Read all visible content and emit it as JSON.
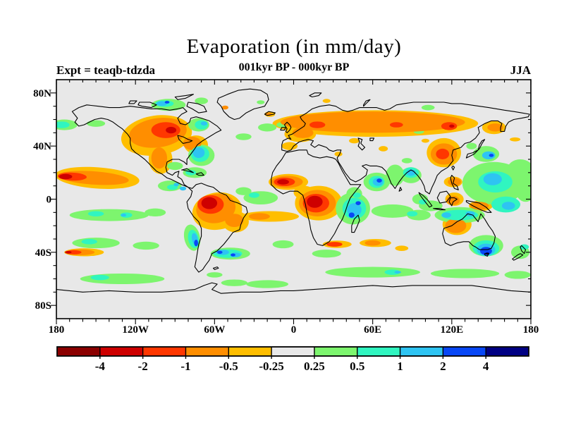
{
  "header": {
    "title": "Evaporation (in mm/day)",
    "subtitle": "001kyr BP - 000kyr BP",
    "experiment_label": "Expt = teaqb-tdzda",
    "season_label": "JJA"
  },
  "axes": {
    "x": {
      "min": -180,
      "max": 180,
      "minor_step": 10,
      "major_ticks": [
        {
          "v": -180,
          "label": "180"
        },
        {
          "v": -120,
          "label": "120W"
        },
        {
          "v": -60,
          "label": "60W"
        },
        {
          "v": 0,
          "label": "0"
        },
        {
          "v": 60,
          "label": "60E"
        },
        {
          "v": 120,
          "label": "120E"
        },
        {
          "v": 180,
          "label": "180"
        }
      ]
    },
    "y": {
      "min": -90,
      "max": 90,
      "minor_step": 10,
      "major_ticks": [
        {
          "v": 80,
          "label": "80N"
        },
        {
          "v": 40,
          "label": "40N"
        },
        {
          "v": 0,
          "label": "0"
        },
        {
          "v": -40,
          "label": "40S"
        },
        {
          "v": -80,
          "label": "80S"
        }
      ]
    }
  },
  "colorbar": {
    "tick_labels": [
      "-4",
      "-2",
      "-1",
      "-0.5",
      "-0.25",
      "0.25",
      "0.5",
      "1",
      "2",
      "4"
    ],
    "colors": [
      "#8B0000",
      "#CE0000",
      "#FF3700",
      "#FF8E00",
      "#FFBE00",
      "#E8E8E8",
      "#7DF56E",
      "#30F5C0",
      "#2EC4F2",
      "#0847F5",
      "#000083"
    ],
    "outline_color": "#000000"
  },
  "map_style": {
    "background": "#E8E8E8",
    "coastline_color": "#000000"
  },
  "chart_data": {
    "type": "filled_contour_map",
    "variable": "Evaporation",
    "units": "mm/day",
    "title": "Evaporation (in mm/day)",
    "period": "001kyr BP - 000kyr BP",
    "season": "JJA",
    "experiment": "teaqb-tdzda",
    "projection": "equirectangular",
    "lon_range": [
      -180,
      180
    ],
    "lat_range": [
      -90,
      90
    ],
    "contour_levels": [
      -4,
      -2,
      -1,
      -0.5,
      -0.25,
      0.25,
      0.5,
      1,
      2,
      4
    ],
    "background_value_band": "-0.25 to 0.25 (gray)",
    "anomaly_format": [
      "lon_deg",
      "lat_deg",
      "rx_deg",
      "ry_deg",
      "level(-5..-1 drier, +1..+5 wetter)",
      "rot_deg"
    ],
    "anomalies": [
      [
        -104,
        48,
        27,
        15,
        -1,
        -8
      ],
      [
        -103,
        50,
        22,
        11,
        -2,
        -8
      ],
      [
        -97,
        52,
        11,
        6,
        -3,
        0
      ],
      [
        -93,
        52,
        4,
        2.5,
        -4,
        0
      ],
      [
        -101,
        30,
        9,
        11,
        -1,
        0
      ],
      [
        -102,
        31,
        6,
        8,
        -2,
        0
      ],
      [
        -74,
        41,
        9,
        7,
        -1,
        0
      ],
      [
        -77,
        42,
        7,
        5,
        -2,
        0
      ],
      [
        -149,
        16,
        32,
        8,
        -1,
        4
      ],
      [
        -152,
        16,
        27,
        5,
        -2,
        4
      ],
      [
        -168,
        17,
        11,
        3,
        -3,
        2
      ],
      [
        -173,
        17,
        5,
        2,
        -4,
        0
      ],
      [
        62,
        57,
        78,
        10,
        -1,
        0
      ],
      [
        60,
        58,
        70,
        8,
        -2,
        0
      ],
      [
        18,
        56,
        6,
        2.5,
        -3,
        0
      ],
      [
        78,
        56,
        5,
        2,
        -3,
        0
      ],
      [
        118,
        55,
        6,
        3,
        -3,
        0
      ],
      [
        120,
        55,
        2,
        1.2,
        -4,
        0
      ],
      [
        5,
        49,
        12,
        6,
        -1,
        0
      ],
      [
        7,
        50,
        8,
        4,
        -2,
        0
      ],
      [
        -3,
        40,
        6,
        3,
        -1,
        0
      ],
      [
        114,
        35,
        13,
        11,
        -1,
        0
      ],
      [
        114,
        34,
        10,
        8,
        -2,
        0
      ],
      [
        113,
        34,
        5,
        4,
        -3,
        0
      ],
      [
        152,
        54,
        9,
        5,
        -1,
        0
      ],
      [
        153,
        54,
        6,
        3,
        -2,
        0
      ],
      [
        168,
        45,
        4,
        1.5,
        -1,
        0
      ],
      [
        -4,
        13,
        15,
        6,
        -1,
        0
      ],
      [
        -5,
        13,
        12,
        4.5,
        -2,
        0
      ],
      [
        -7,
        13,
        8,
        3.2,
        -3,
        0
      ],
      [
        -8,
        13,
        4.5,
        2,
        -4,
        0
      ],
      [
        19,
        -3,
        18,
        13,
        -1,
        0
      ],
      [
        18,
        -3,
        14,
        10,
        -2,
        0
      ],
      [
        17,
        -3,
        10,
        7,
        -3,
        0
      ],
      [
        16,
        -2,
        6,
        4.5,
        -4,
        0
      ],
      [
        8,
        5,
        8,
        5,
        -1,
        0
      ],
      [
        -58,
        -9,
        19,
        14,
        -1,
        -10
      ],
      [
        -59,
        -7,
        15,
        11,
        -2,
        -10
      ],
      [
        -63,
        -4,
        10,
        7,
        -3,
        0
      ],
      [
        -64,
        -3,
        6,
        4.5,
        -4,
        0
      ],
      [
        -44,
        -17,
        10,
        8,
        -1,
        0
      ],
      [
        -45,
        -16,
        7,
        5,
        -2,
        0
      ],
      [
        -18,
        -13,
        22,
        4,
        -1,
        0
      ],
      [
        -26,
        -13,
        8,
        2.5,
        -2,
        0
      ],
      [
        -18,
        64,
        4,
        2,
        -1,
        0
      ],
      [
        -19,
        64,
        2.5,
        1.2,
        -2,
        0
      ],
      [
        -52,
        69,
        2.5,
        1.5,
        -2,
        0
      ],
      [
        25,
        74,
        3,
        1.5,
        -1,
        0
      ],
      [
        34,
        34,
        3,
        1.8,
        -1,
        0
      ],
      [
        46,
        44,
        4,
        2,
        -1,
        0
      ],
      [
        68,
        38,
        3.5,
        2,
        -1,
        0
      ],
      [
        100,
        44,
        3,
        1.5,
        -1,
        0
      ],
      [
        -159,
        -40,
        15,
        3,
        -1,
        0
      ],
      [
        -162,
        -40,
        11,
        2.2,
        -2,
        0
      ],
      [
        -167,
        -40,
        6,
        1.6,
        -3,
        0
      ],
      [
        -171,
        -40,
        2.5,
        1,
        -4,
        0
      ],
      [
        33,
        -34,
        11,
        2.8,
        -1,
        0
      ],
      [
        31,
        -34,
        6,
        1.8,
        -3,
        0
      ],
      [
        62,
        -33,
        12,
        3,
        -1,
        0
      ],
      [
        60,
        -33,
        6,
        2,
        -2,
        0
      ],
      [
        82,
        -37,
        5,
        2,
        -1,
        0
      ],
      [
        124,
        -19,
        11,
        8,
        -1,
        0
      ],
      [
        123,
        -20,
        8,
        5.5,
        -2,
        0
      ],
      [
        122,
        0,
        7,
        5,
        -1,
        0
      ],
      [
        121,
        -1,
        5,
        3.5,
        -2,
        0
      ],
      [
        142,
        -5,
        9,
        4,
        -1,
        0
      ],
      [
        141,
        -5,
        7,
        3,
        -2,
        0
      ],
      [
        121,
        13,
        7,
        4,
        -1,
        0
      ],
      [
        122,
        13,
        5,
        3,
        -2,
        0
      ],
      [
        -95,
        71,
        13,
        4.5,
        1,
        0
      ],
      [
        -98,
        72,
        7,
        2.5,
        2,
        0
      ],
      [
        -100,
        72,
        4,
        1.8,
        3,
        0
      ],
      [
        -96,
        73,
        1.8,
        1,
        4,
        0
      ],
      [
        -70,
        74,
        5,
        2.5,
        1,
        0
      ],
      [
        -25,
        73,
        3,
        1.5,
        1,
        0
      ],
      [
        -72,
        56,
        8,
        5,
        1,
        0
      ],
      [
        -70,
        56,
        5,
        3.5,
        2,
        0
      ],
      [
        -68,
        57,
        2.5,
        1.5,
        3,
        0
      ],
      [
        -174,
        56,
        10,
        4,
        1,
        0
      ],
      [
        -176,
        56,
        6,
        2.5,
        2,
        0
      ],
      [
        -150,
        57,
        7,
        2.5,
        1,
        0
      ],
      [
        -70,
        33,
        10,
        8,
        1,
        0
      ],
      [
        -71,
        34,
        7,
        6,
        2,
        0
      ],
      [
        -72,
        35,
        4.5,
        4,
        3,
        0
      ],
      [
        -75,
        20,
        9,
        4,
        1,
        0
      ],
      [
        -78,
        20,
        4,
        2,
        2,
        0
      ],
      [
        -90,
        25,
        6,
        3,
        1,
        0
      ],
      [
        -94,
        10,
        9,
        4,
        1,
        0
      ],
      [
        -92,
        9,
        4,
        2,
        2,
        0
      ],
      [
        -89,
        11,
        2,
        1.3,
        3,
        0
      ],
      [
        -84,
        8,
        2.5,
        1.5,
        3,
        0
      ],
      [
        -25,
        1,
        13,
        5,
        1,
        0
      ],
      [
        -30,
        3,
        4,
        2,
        2,
        0
      ],
      [
        -38,
        6,
        6,
        3,
        1,
        0
      ],
      [
        -20,
        54,
        7,
        3,
        1,
        0
      ],
      [
        -38,
        47,
        6,
        2.5,
        1,
        0
      ],
      [
        -9,
        56,
        4,
        2,
        1,
        0
      ],
      [
        63,
        13,
        10,
        7,
        1,
        0
      ],
      [
        63,
        13,
        6,
        4.5,
        2,
        0
      ],
      [
        64,
        13,
        4,
        3,
        3,
        0
      ],
      [
        65,
        14,
        2,
        1.5,
        4,
        0
      ],
      [
        77,
        18,
        7,
        8,
        1,
        0
      ],
      [
        86,
        29,
        4,
        2,
        1,
        0
      ],
      [
        89,
        18,
        8,
        6,
        1,
        0
      ],
      [
        89,
        20,
        6,
        4,
        2,
        0
      ],
      [
        89,
        20,
        3.5,
        2.5,
        3,
        0
      ],
      [
        45,
        -7,
        13,
        12,
        1,
        0
      ],
      [
        46,
        -7,
        9,
        8,
        2,
        0
      ],
      [
        46,
        -8,
        5.5,
        5,
        3,
        0
      ],
      [
        44,
        -12,
        2.2,
        2,
        4,
        0
      ],
      [
        49,
        -3,
        2,
        1.5,
        4,
        0
      ],
      [
        46,
        4,
        6,
        5,
        1,
        0
      ],
      [
        48,
        3,
        3,
        2,
        2,
        0
      ],
      [
        75,
        -9,
        16,
        5,
        1,
        0
      ],
      [
        95,
        -12,
        9,
        4,
        1,
        0
      ],
      [
        90,
        -11,
        4,
        2,
        2,
        0
      ],
      [
        152,
        12,
        24,
        16,
        1,
        0
      ],
      [
        176,
        8,
        8,
        10,
        1,
        0
      ],
      [
        153,
        13,
        13,
        8,
        2,
        0
      ],
      [
        151,
        15,
        7,
        4.5,
        3,
        0
      ],
      [
        161,
        -4,
        11,
        6,
        2,
        0
      ],
      [
        163,
        -5,
        5,
        3,
        3,
        0
      ],
      [
        172,
        22,
        10,
        8,
        1,
        0
      ],
      [
        146,
        34,
        10,
        6,
        1,
        0
      ],
      [
        148,
        33,
        5,
        3,
        3,
        0
      ],
      [
        150,
        33,
        1.8,
        1.2,
        4,
        0
      ],
      [
        135,
        40,
        4,
        2.5,
        1,
        0
      ],
      [
        126,
        -12,
        19,
        6,
        1,
        0
      ],
      [
        126,
        -12,
        14,
        4,
        2,
        0
      ],
      [
        116,
        -12,
        3.5,
        2,
        3,
        0
      ],
      [
        134,
        -11,
        3.5,
        2,
        3,
        0
      ],
      [
        104,
        -5,
        9,
        4,
        1,
        0
      ],
      [
        96,
        0,
        6,
        4,
        1,
        0
      ],
      [
        98,
        -2,
        3,
        2,
        2,
        0
      ],
      [
        146,
        -35,
        13,
        8,
        1,
        0
      ],
      [
        146,
        -37,
        10,
        6,
        2,
        0
      ],
      [
        146,
        -38,
        7,
        4.5,
        3,
        0
      ],
      [
        146,
        -39,
        4.5,
        3,
        4,
        0
      ],
      [
        147,
        -41,
        1.5,
        1,
        5,
        0
      ],
      [
        172,
        -40,
        7,
        5,
        1,
        0
      ],
      [
        175,
        -36,
        3.5,
        2,
        2,
        0
      ],
      [
        -140,
        -12,
        30,
        4.5,
        1,
        0
      ],
      [
        -150,
        -11,
        6,
        2,
        2,
        0
      ],
      [
        -127,
        -12,
        4.5,
        2,
        2,
        0
      ],
      [
        -129,
        -12,
        2,
        1.1,
        3,
        0
      ],
      [
        -105,
        -10,
        8,
        3,
        1,
        0
      ],
      [
        -150,
        -33,
        18,
        4,
        1,
        0
      ],
      [
        -155,
        -32,
        6,
        2,
        2,
        0
      ],
      [
        -112,
        -35,
        10,
        3,
        1,
        0
      ],
      [
        -77,
        -29,
        6,
        10,
        1,
        -12
      ],
      [
        -76,
        -30,
        4,
        7,
        2,
        -12
      ],
      [
        -75,
        -30,
        2.2,
        4.5,
        3,
        -12
      ],
      [
        -74,
        -33,
        1.5,
        2.5,
        4,
        0
      ],
      [
        -48,
        -41,
        15,
        4.5,
        1,
        0
      ],
      [
        -50,
        -41,
        11,
        3.2,
        2,
        0
      ],
      [
        -54,
        -40,
        5,
        2,
        3,
        0
      ],
      [
        -56,
        -40,
        2,
        1.2,
        4,
        0
      ],
      [
        -44,
        -42,
        4,
        1.8,
        3,
        0
      ],
      [
        -46,
        -42,
        1.8,
        1.1,
        4,
        0
      ],
      [
        -130,
        -60,
        32,
        4,
        1,
        0
      ],
      [
        -147,
        -59,
        7,
        2,
        2,
        0
      ],
      [
        -20,
        -64,
        16,
        3,
        1,
        0
      ],
      [
        -45,
        -63,
        10,
        2.5,
        1,
        0
      ],
      [
        -60,
        -57,
        6,
        2,
        1,
        0
      ],
      [
        60,
        -55,
        36,
        4,
        1,
        0
      ],
      [
        75,
        -55,
        6,
        2,
        2,
        0
      ],
      [
        79,
        -55,
        2.5,
        1,
        3,
        0
      ],
      [
        130,
        -56,
        26,
        3.5,
        1,
        0
      ],
      [
        170,
        -57,
        10,
        3,
        1,
        0
      ],
      [
        25,
        -41,
        11,
        3,
        1,
        0
      ],
      [
        -8,
        -34,
        8,
        3,
        1,
        0
      ],
      [
        102,
        69,
        5,
        2,
        1,
        0
      ],
      [
        95,
        51,
        4,
        1.8,
        1,
        0
      ]
    ]
  }
}
